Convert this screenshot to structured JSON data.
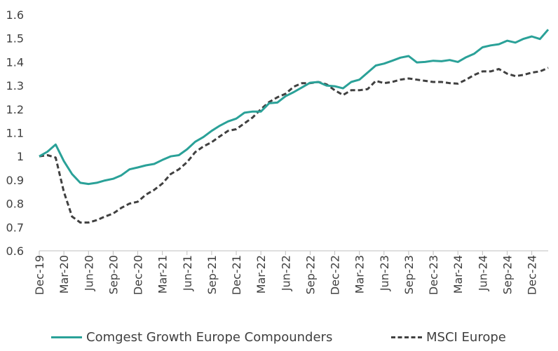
{
  "chart_data": {
    "type": "line",
    "title": "",
    "xlabel": "",
    "ylabel": "",
    "ylim": [
      0.6,
      1.6
    ],
    "yticks": [
      "0.6",
      "0.7",
      "0.8",
      "0.9",
      "1",
      "1.1",
      "1.2",
      "1.3",
      "1.4",
      "1.5",
      "1.6"
    ],
    "xtick_labels": [
      "Dec-19",
      "Mar-20",
      "Jun-20",
      "Sep-20",
      "Dec-20",
      "Mar-21",
      "Jun-21",
      "Sep-21",
      "Dec-21",
      "Mar-22",
      "Jun-22",
      "Sep-22",
      "Dec-22",
      "Mar-23",
      "Jun-23",
      "Sep-23",
      "Dec-23",
      "Mar-24",
      "Jun-24",
      "Sep-24",
      "Dec-24"
    ],
    "x": [
      "Dec-19",
      "Jan-20",
      "Feb-20",
      "Mar-20",
      "Apr-20",
      "May-20",
      "Jun-20",
      "Jul-20",
      "Aug-20",
      "Sep-20",
      "Oct-20",
      "Nov-20",
      "Dec-20",
      "Jan-21",
      "Feb-21",
      "Mar-21",
      "Apr-21",
      "May-21",
      "Jun-21",
      "Jul-21",
      "Aug-21",
      "Sep-21",
      "Oct-21",
      "Nov-21",
      "Dec-21",
      "Jan-22",
      "Feb-22",
      "Mar-22",
      "Apr-22",
      "May-22",
      "Jun-22",
      "Jul-22",
      "Aug-22",
      "Sep-22",
      "Oct-22",
      "Nov-22",
      "Dec-22",
      "Jan-23",
      "Feb-23",
      "Mar-23",
      "Apr-23",
      "May-23",
      "Jun-23",
      "Jul-23",
      "Aug-23",
      "Sep-23",
      "Oct-23",
      "Nov-23",
      "Dec-23",
      "Jan-24",
      "Feb-24",
      "Mar-24",
      "Apr-24",
      "May-24",
      "Jun-24",
      "Jul-24",
      "Aug-24",
      "Sep-24",
      "Oct-24",
      "Nov-24",
      "Dec-24",
      "Jan-25",
      "Feb-25"
    ],
    "series": [
      {
        "name": "Comgest Growth Europe Compounders",
        "color": "#2aa198",
        "style": "solid",
        "values": [
          1.0,
          1.02,
          1.05,
          0.98,
          0.925,
          0.888,
          0.883,
          0.888,
          0.898,
          0.905,
          0.92,
          0.945,
          0.953,
          0.962,
          0.968,
          0.985,
          1.0,
          1.005,
          1.03,
          1.062,
          1.082,
          1.108,
          1.13,
          1.148,
          1.16,
          1.185,
          1.19,
          1.19,
          1.225,
          1.228,
          1.255,
          1.272,
          1.292,
          1.312,
          1.315,
          1.3,
          1.297,
          1.288,
          1.315,
          1.325,
          1.355,
          1.385,
          1.393,
          1.405,
          1.418,
          1.425,
          1.398,
          1.4,
          1.405,
          1.403,
          1.408,
          1.4,
          1.42,
          1.435,
          1.462,
          1.47,
          1.475,
          1.49,
          1.482,
          1.498,
          1.508,
          1.497,
          1.537
        ]
      },
      {
        "name": "MSCI Europe",
        "color": "#404040",
        "style": "dashed",
        "values": [
          1.0,
          1.005,
          0.995,
          0.85,
          0.745,
          0.72,
          0.72,
          0.73,
          0.745,
          0.758,
          0.782,
          0.8,
          0.808,
          0.838,
          0.858,
          0.885,
          0.925,
          0.945,
          0.975,
          1.018,
          1.042,
          1.06,
          1.085,
          1.108,
          1.115,
          1.14,
          1.165,
          1.2,
          1.23,
          1.25,
          1.265,
          1.295,
          1.31,
          1.31,
          1.315,
          1.305,
          1.28,
          1.26,
          1.28,
          1.28,
          1.285,
          1.32,
          1.31,
          1.315,
          1.325,
          1.33,
          1.325,
          1.32,
          1.315,
          1.315,
          1.31,
          1.308,
          1.325,
          1.345,
          1.36,
          1.36,
          1.37,
          1.35,
          1.34,
          1.345,
          1.355,
          1.36,
          1.375
        ]
      }
    ],
    "grid": false,
    "legend_position": "bottom"
  }
}
